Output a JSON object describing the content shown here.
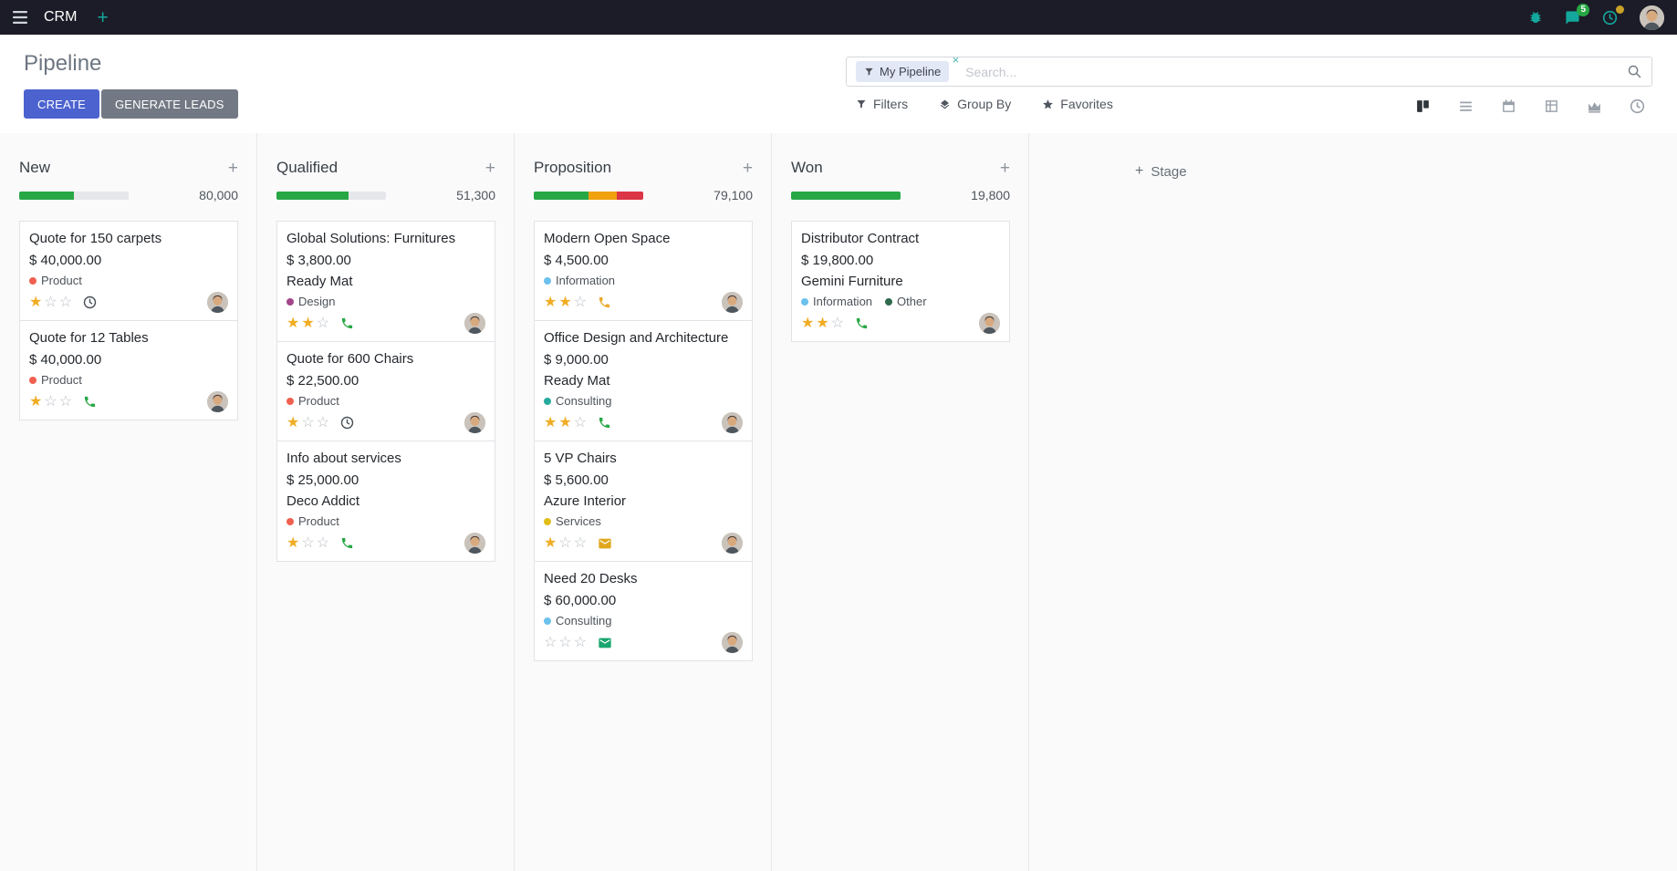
{
  "navbar": {
    "app_name": "CRM",
    "messages_badge": "5"
  },
  "control_panel": {
    "title": "Pipeline",
    "buttons": {
      "create": "CREATE",
      "generate_leads": "GENERATE LEADS"
    },
    "search": {
      "facet_label": "My Pipeline",
      "placeholder": "Search..."
    },
    "menus": {
      "filters": "Filters",
      "group_by": "Group By",
      "favorites": "Favorites"
    },
    "view_switcher": [
      {
        "name": "kanban",
        "active": true
      },
      {
        "name": "list",
        "active": false
      },
      {
        "name": "calendar",
        "active": false
      },
      {
        "name": "pivot",
        "active": false
      },
      {
        "name": "graph",
        "active": false
      },
      {
        "name": "activity",
        "active": false
      }
    ]
  },
  "icons": {
    "plus": "+",
    "close": "×"
  },
  "colors": {
    "navbar_bg": "#1c1c28",
    "teal_accent": "#14a79d",
    "create_button": "#4c62cf",
    "generate_button": "#727984",
    "badge_green": "#28a745",
    "star_gold": "#f0ad24",
    "progress_green": "#28a745",
    "progress_orange": "#f0a10e",
    "progress_red": "#dc3545",
    "progress_muted": "#e6e7ea"
  },
  "board": {
    "add_stage_label": "Stage",
    "columns": [
      {
        "title": "New",
        "total": "80,000",
        "progress": [
          {
            "color": "#28a745",
            "pct": 50
          },
          {
            "color": "#e6e7ea",
            "pct": 50
          }
        ],
        "cards": [
          {
            "title": "Quote for 150 carpets",
            "amount": "$ 40,000.00",
            "tags": [
              {
                "label": "Product",
                "color": "#f06050"
              }
            ],
            "stars_filled": 1,
            "stars_total": 3,
            "activity_icon": "clock",
            "activity_color": "#495057"
          },
          {
            "title": "Quote for 12 Tables",
            "amount": "$ 40,000.00",
            "tags": [
              {
                "label": "Product",
                "color": "#f06050"
              }
            ],
            "stars_filled": 1,
            "stars_total": 3,
            "activity_icon": "phone",
            "activity_color": "#28a745"
          }
        ]
      },
      {
        "title": "Qualified",
        "total": "51,300",
        "progress": [
          {
            "color": "#28a745",
            "pct": 66
          },
          {
            "color": "#e6e7ea",
            "pct": 34
          }
        ],
        "cards": [
          {
            "title": "Global Solutions: Furnitures",
            "amount": "$ 3,800.00",
            "partner": "Ready Mat",
            "tags": [
              {
                "label": "Design",
                "color": "#a24689"
              }
            ],
            "stars_filled": 2,
            "stars_total": 3,
            "activity_icon": "phone",
            "activity_color": "#28a745"
          },
          {
            "title": "Quote for 600 Chairs",
            "amount": "$ 22,500.00",
            "tags": [
              {
                "label": "Product",
                "color": "#f06050"
              }
            ],
            "stars_filled": 1,
            "stars_total": 3,
            "activity_icon": "clock",
            "activity_color": "#495057"
          },
          {
            "title": "Info about services",
            "amount": "$ 25,000.00",
            "partner": "Deco Addict",
            "tags": [
              {
                "label": "Product",
                "color": "#f06050"
              }
            ],
            "stars_filled": 1,
            "stars_total": 3,
            "activity_icon": "phone",
            "activity_color": "#28a745"
          }
        ]
      },
      {
        "title": "Proposition",
        "total": "79,100",
        "progress": [
          {
            "color": "#28a745",
            "pct": 50
          },
          {
            "color": "#f0a10e",
            "pct": 26
          },
          {
            "color": "#dc3545",
            "pct": 24
          }
        ],
        "cards": [
          {
            "title": "Modern Open Space",
            "amount": "$ 4,500.00",
            "tags": [
              {
                "label": "Information",
                "color": "#6cc1ed"
              }
            ],
            "stars_filled": 2,
            "stars_total": 3,
            "activity_icon": "phone",
            "activity_color": "#eca92c"
          },
          {
            "title": "Office Design and Architecture",
            "amount": "$ 9,000.00",
            "partner": "Ready Mat",
            "tags": [
              {
                "label": "Consulting",
                "color": "#27ab9e"
              }
            ],
            "stars_filled": 2,
            "stars_total": 3,
            "activity_icon": "phone",
            "activity_color": "#28a745"
          },
          {
            "title": "5 VP Chairs",
            "amount": "$ 5,600.00",
            "partner": "Azure Interior",
            "tags": [
              {
                "label": "Services",
                "color": "#e2bd17"
              }
            ],
            "stars_filled": 1,
            "stars_total": 3,
            "activity_icon": "mail",
            "activity_color": "#dfa81f"
          },
          {
            "title": "Need 20 Desks",
            "amount": "$ 60,000.00",
            "tags": [
              {
                "label": "Consulting",
                "color": "#6cc1ed"
              }
            ],
            "stars_filled": 0,
            "stars_total": 3,
            "activity_icon": "mail",
            "activity_color": "#19a56e"
          }
        ]
      },
      {
        "title": "Won",
        "total": "19,800",
        "progress": [
          {
            "color": "#28a745",
            "pct": 100
          }
        ],
        "cards": [
          {
            "title": "Distributor Contract",
            "amount": "$ 19,800.00",
            "partner": "Gemini Furniture",
            "tags": [
              {
                "label": "Information",
                "color": "#6cc1ed"
              },
              {
                "label": "Other",
                "color": "#2f6a4d"
              }
            ],
            "stars_filled": 2,
            "stars_total": 3,
            "activity_icon": "phone",
            "activity_color": "#28a745"
          }
        ]
      }
    ]
  }
}
